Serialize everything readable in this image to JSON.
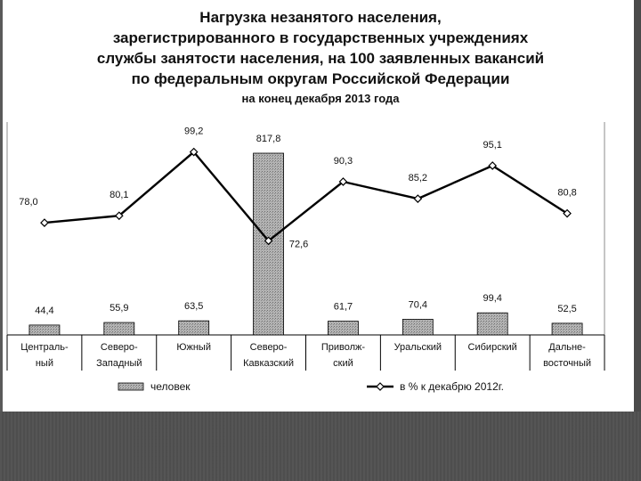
{
  "title": {
    "lines": [
      "Нагрузка незанятого населения,",
      "зарегистрированного в государственных учреждениях",
      "службы занятости населения, на 100 заявленных вакансий",
      "по федеральным округам Российской Федерации"
    ],
    "subtitle": "на конец декабря 2013 года"
  },
  "chart_data": {
    "type": "bar",
    "categories": [
      [
        "Централь-",
        "ный"
      ],
      [
        "Северо-",
        "Западный"
      ],
      [
        "Южный"
      ],
      [
        "Северо-",
        "Кавказский"
      ],
      [
        "Приволж-",
        "ский"
      ],
      [
        "Уральский"
      ],
      [
        "Сибирский"
      ],
      [
        "Дальне-",
        "восточный"
      ]
    ],
    "series": [
      {
        "name": "человек",
        "type": "bar",
        "values": [
          44.4,
          55.9,
          63.5,
          817.8,
          61.7,
          70.4,
          99.4,
          52.5
        ],
        "labels": [
          "44,4",
          "55,9",
          "63,5",
          "817,8",
          "61,7",
          "70,4",
          "99,4",
          "52,5"
        ],
        "color": "#a6a6a6"
      },
      {
        "name": "в % к декабрю 2012г.",
        "type": "line",
        "values": [
          78.0,
          80.1,
          99.2,
          72.6,
          90.3,
          85.2,
          95.1,
          80.8
        ],
        "labels": [
          "78,0",
          "80,1",
          "99,2",
          "72,6",
          "90,3",
          "85,2",
          "95,1",
          "80,8"
        ],
        "color": "#000000"
      }
    ],
    "ylim": [
      0,
      900
    ],
    "line_ylim": [
      0,
      120
    ],
    "grid": false,
    "legend": "bottom"
  }
}
